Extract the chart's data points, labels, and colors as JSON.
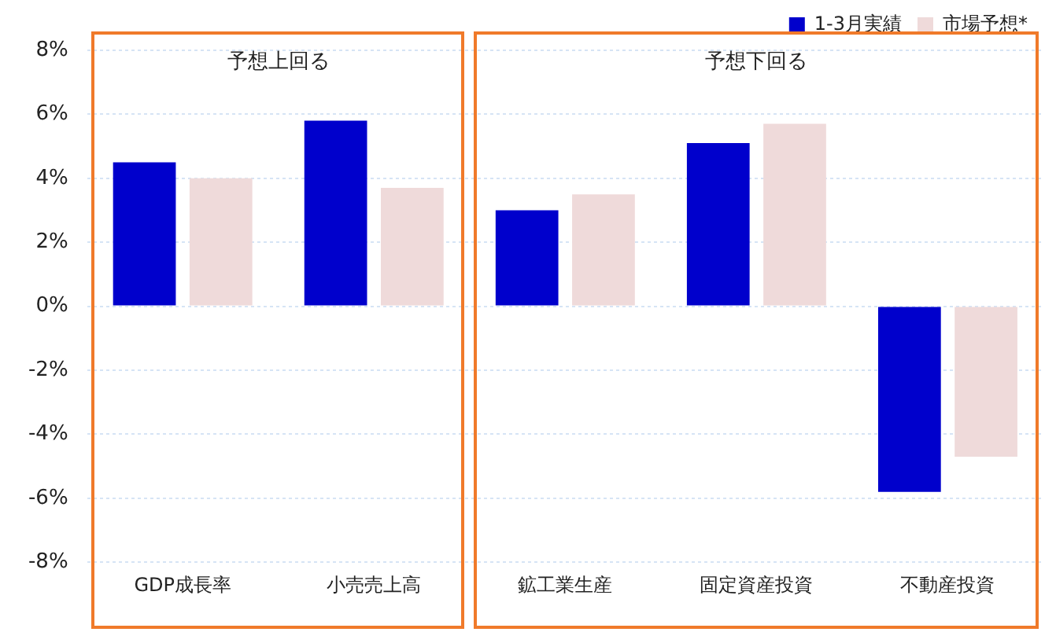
{
  "chart_data": {
    "type": "bar",
    "categories": [
      "GDP成長率",
      "小売売上高",
      "鉱工業生産",
      "固定資産投資",
      "不動産投資"
    ],
    "series": [
      {
        "name": "1-3月実績",
        "color": "#0000cc",
        "values": [
          4.5,
          5.8,
          3.0,
          5.1,
          -5.8
        ]
      },
      {
        "name": "市場予想*",
        "color": "#efdada",
        "values": [
          4.0,
          3.7,
          3.5,
          5.7,
          -4.7
        ]
      }
    ],
    "ylim": [
      -8,
      8
    ],
    "yticks": [
      {
        "value": -8,
        "label": "-8%"
      },
      {
        "value": -6,
        "label": "-6%"
      },
      {
        "value": -4,
        "label": "-4%"
      },
      {
        "value": -2,
        "label": "-2%"
      },
      {
        "value": 0,
        "label": "0%"
      },
      {
        "value": 2,
        "label": "2%"
      },
      {
        "value": 4,
        "label": "4%"
      },
      {
        "value": 6,
        "label": "6%"
      },
      {
        "value": 8,
        "label": "8%"
      }
    ],
    "annotations": [
      "予想上回る",
      "予想下回る"
    ],
    "grid": "y",
    "legend": "top"
  }
}
